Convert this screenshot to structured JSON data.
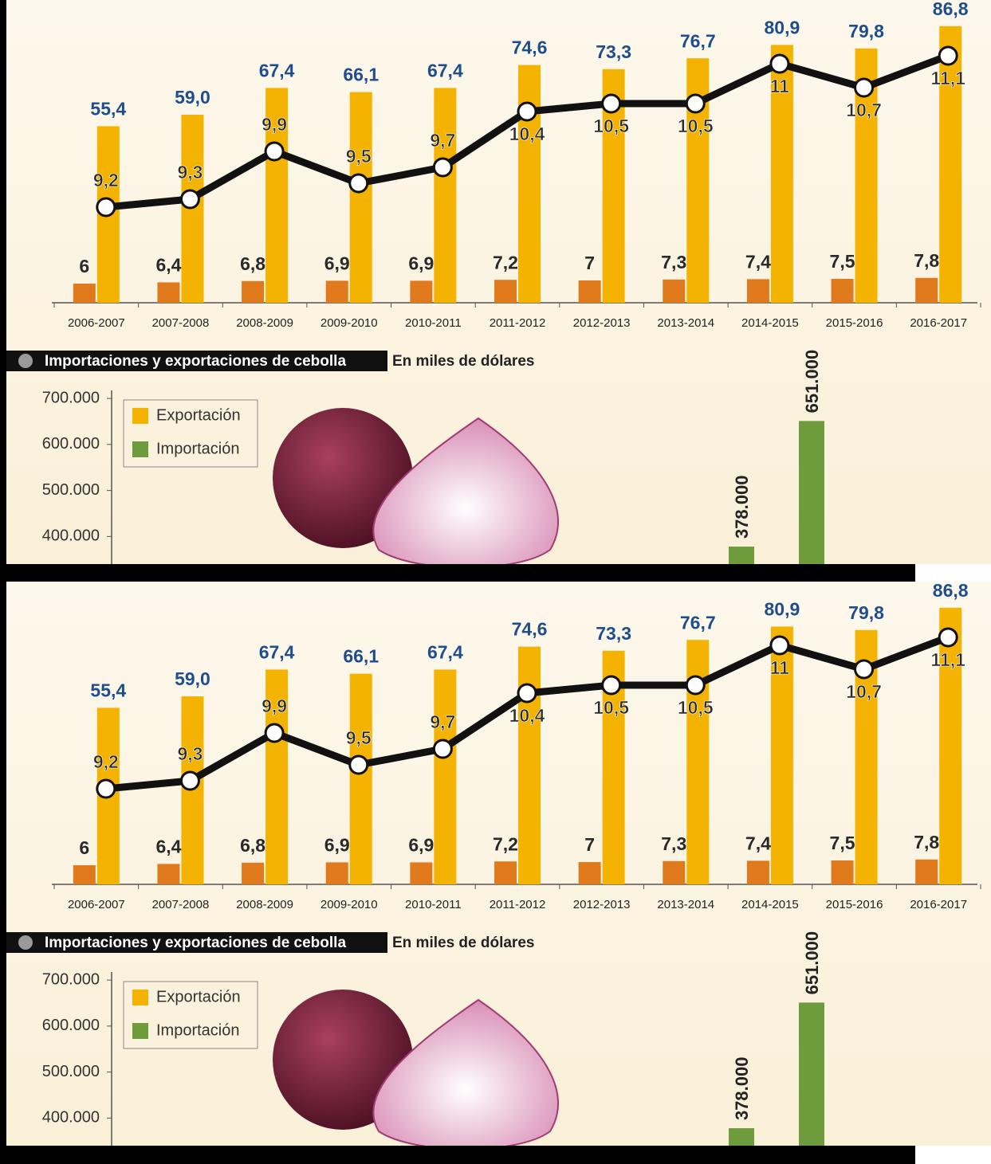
{
  "chart_data": [
    {
      "type": "bar",
      "categories": [
        "2006-2007",
        "2007-2008",
        "2008-2009",
        "2009-2010",
        "2010-2011",
        "2011-2012",
        "2012-2013",
        "2013-2014",
        "2014-2015",
        "2015-2016",
        "2016-2017"
      ],
      "ylim": [
        0,
        95
      ],
      "y2lim": [
        8,
        11.8
      ],
      "series": [
        {
          "color": "#f5b301",
          "values": [
            55.4,
            59.0,
            67.4,
            66.1,
            67.4,
            74.6,
            73.3,
            76.7,
            80.9,
            79.8,
            86.8
          ],
          "value_labels": [
            "55,4",
            "59,0",
            "67,4",
            "66,1",
            "67,4",
            "74,6",
            "73,3",
            "76,7",
            "80,9",
            "79,8",
            "86,8"
          ]
        },
        {
          "color": "#e07a1c",
          "values": [
            6,
            6.4,
            6.8,
            6.9,
            6.9,
            7.2,
            7,
            7.3,
            7.4,
            7.5,
            7.8
          ],
          "value_labels": [
            "6",
            "6,4",
            "6,8",
            "6,9",
            "6,9",
            "7,2",
            "7",
            "7,3",
            "7,4",
            "7,5",
            "7,8"
          ]
        },
        {
          "type": "line",
          "axis": "y2",
          "color": "#111111",
          "values": [
            9.2,
            9.3,
            9.9,
            9.5,
            9.7,
            10.4,
            10.5,
            10.5,
            11,
            10.7,
            11.1
          ],
          "value_labels": [
            "9,2",
            "9,3",
            "9,9",
            "9,5",
            "9,7",
            "10,4",
            "10,5",
            "10,5",
            "11",
            "10,7",
            "11,1"
          ]
        }
      ]
    },
    {
      "type": "bar",
      "title": "Importaciones y exportaciones de cebolla",
      "subtitle": "En miles de dólares",
      "categories": [
        null,
        null
      ],
      "ylim": [
        340000,
        740000
      ],
      "yticks": [
        {
          "value": 400000,
          "label": "400.000"
        },
        {
          "value": 500000,
          "label": "500.000"
        },
        {
          "value": 600000,
          "label": "600.000"
        },
        {
          "value": 700000,
          "label": "700.000"
        }
      ],
      "series": [
        {
          "name": "Exportación",
          "color": "#f5b301",
          "values": [
            null,
            null
          ]
        },
        {
          "name": "Importación",
          "color": "#6e9b3b",
          "values": [
            378000,
            651000
          ],
          "value_labels": [
            "378.000",
            "651.000"
          ]
        }
      ]
    },
    {
      "type": "bar",
      "categories": [
        "2006-2007",
        "2007-2008",
        "2008-2009",
        "2009-2010",
        "2010-2011",
        "2011-2012",
        "2012-2013",
        "2013-2014",
        "2014-2015",
        "2015-2016",
        "2016-2017"
      ],
      "ylim": [
        0,
        95
      ],
      "y2lim": [
        8,
        11.8
      ],
      "series": [
        {
          "color": "#f5b301",
          "values": [
            55.4,
            59.0,
            67.4,
            66.1,
            67.4,
            74.6,
            73.3,
            76.7,
            80.9,
            79.8,
            86.8
          ],
          "value_labels": [
            "55,4",
            "59,0",
            "67,4",
            "66,1",
            "67,4",
            "74,6",
            "73,3",
            "76,7",
            "80,9",
            "79,8",
            "86,8"
          ]
        },
        {
          "color": "#e07a1c",
          "values": [
            6,
            6.4,
            6.8,
            6.9,
            6.9,
            7.2,
            7,
            7.3,
            7.4,
            7.5,
            7.8
          ],
          "value_labels": [
            "6",
            "6,4",
            "6,8",
            "6,9",
            "6,9",
            "7,2",
            "7",
            "7,3",
            "7,4",
            "7,5",
            "7,8"
          ]
        },
        {
          "type": "line",
          "axis": "y2",
          "color": "#111111",
          "values": [
            9.2,
            9.3,
            9.9,
            9.5,
            9.7,
            10.4,
            10.5,
            10.5,
            11,
            10.7,
            11.1
          ],
          "value_labels": [
            "9,2",
            "9,3",
            "9,9",
            "9,5",
            "9,7",
            "10,4",
            "10,5",
            "10,5",
            "11",
            "10,7",
            "11,1"
          ]
        }
      ]
    },
    {
      "type": "bar",
      "title": "Importaciones y exportaciones de cebolla",
      "subtitle": "En miles de dólares",
      "categories": [
        null,
        null
      ],
      "ylim": [
        340000,
        740000
      ],
      "yticks": [
        {
          "value": 400000,
          "label": "400.000"
        },
        {
          "value": 500000,
          "label": "500.000"
        },
        {
          "value": 600000,
          "label": "600.000"
        },
        {
          "value": 700000,
          "label": "700.000"
        }
      ],
      "series": [
        {
          "name": "Exportación",
          "color": "#f5b301",
          "values": [
            null,
            null
          ]
        },
        {
          "name": "Importación",
          "color": "#6e9b3b",
          "values": [
            378000,
            651000
          ],
          "value_labels": [
            "378.000",
            "651.000"
          ]
        }
      ]
    }
  ]
}
